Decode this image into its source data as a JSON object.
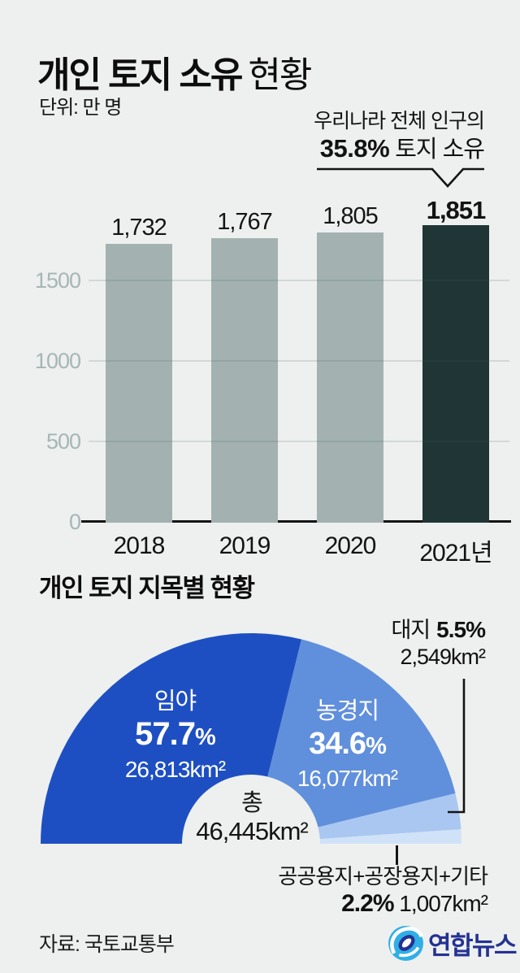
{
  "header": {
    "title_strong": "개인 토지 소유",
    "title_light": "현황",
    "unit": "단위: 만 명"
  },
  "annotation": {
    "line1": "우리나라 전체 인구의",
    "pct": "35.8%",
    "rest": " 토지 소유"
  },
  "section2": {
    "title": "개인 토지 지목별 현황"
  },
  "footer": {
    "source": "자료: 국토교통부",
    "logo_text": "연합뉴스"
  },
  "colors": {
    "background": "#edf0ee",
    "bar": "#a3b2b1",
    "bar_highlight": "#203536",
    "axis": "#141414",
    "tick_label": "#a6b6b6",
    "logo_blue": "#2fafe6",
    "logo_navy": "#243193"
  },
  "chart_data": [
    {
      "type": "bar",
      "title": "개인 토지 소유 현황",
      "unit_note": "단위: 만 명",
      "categories": [
        "2018",
        "2019",
        "2020",
        "2021년"
      ],
      "values": [
        1732,
        1767,
        1805,
        1851
      ],
      "value_labels": [
        "1,732",
        "1,767",
        "1,805",
        "1,851"
      ],
      "highlight_index": 3,
      "annotation": "우리나라 전체 인구의 35.8% 토지 소유",
      "y_ticks": [
        0,
        500,
        1000,
        1500
      ],
      "ylim": [
        0,
        1945
      ],
      "grid": true,
      "bar_color": "#a3b2b1",
      "highlight_color": "#203536"
    },
    {
      "type": "pie",
      "shape": "semicircle-donut",
      "title": "개인 토지 지목별 현황",
      "pct_sign": "%",
      "center_label": "총",
      "center_value": "46,445km²",
      "slices": [
        {
          "name": "임야",
          "percent": 57.7,
          "percent_label": "57.7",
          "area": "26,813km²",
          "color": "#1e4fc2"
        },
        {
          "name": "농경지",
          "percent": 34.6,
          "percent_label": "34.6",
          "area": "16,077km²",
          "color": "#608fdc"
        },
        {
          "name": "대지",
          "percent": 5.5,
          "percent_label": "5.5",
          "area": "2,549km²",
          "color": "#a9c7f0"
        },
        {
          "name": "공공용지+공장용지+기타",
          "percent": 2.2,
          "percent_label": "2.2",
          "area": "1,007km²",
          "color": "#d0e2f8"
        }
      ]
    }
  ]
}
